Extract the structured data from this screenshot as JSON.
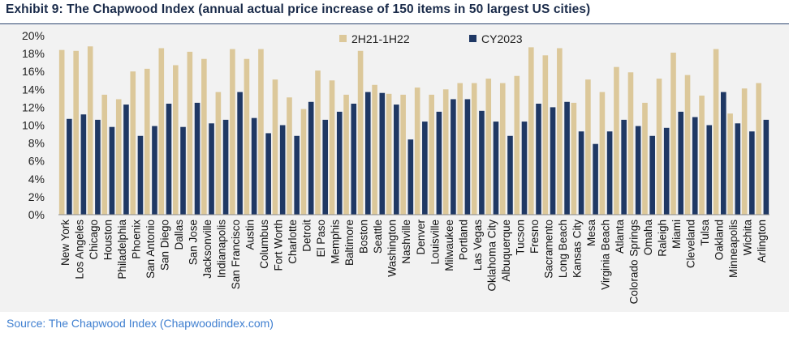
{
  "header": {
    "title": "Exhibit 9: The Chapwood Index (annual actual price increase of 150 items in 50 largest US cities)"
  },
  "footer": {
    "source": "Source: The Chapwood Index (Chapwoodindex.com)"
  },
  "colors": {
    "series_1": "#dcc89a",
    "series_2": "#1f3864",
    "panel_background": "#f2f2f2",
    "title_rule": "#1f3864",
    "source_text": "#3f7fd0"
  },
  "chart_data": {
    "type": "bar",
    "title": "",
    "xlabel": "",
    "ylabel": "",
    "ylim": [
      0,
      20
    ],
    "y_ticks": [
      "0%",
      "2%",
      "4%",
      "6%",
      "8%",
      "10%",
      "12%",
      "14%",
      "16%",
      "18%",
      "20%"
    ],
    "grid": false,
    "legend_position": "top-center",
    "categories": [
      "New York",
      "Los Angeles",
      "Chicago",
      "Houston",
      "Philadelphia",
      "Phoenix",
      "San Antonio",
      "San Diego",
      "Dallas",
      "San Jose",
      "Jacksonville",
      "Indianapolis",
      "San Francisco",
      "Austin",
      "Columbus",
      "Fort Worth",
      "Charlotte",
      "Detroit",
      "El Paso",
      "Memphis",
      "Baltimore",
      "Boston",
      "Seattle",
      "Washington",
      "Nashville",
      "Denver",
      "Louisville",
      "Milwaukee",
      "Portland",
      "Las Vegas",
      "Oklahoma City",
      "Albuquerque",
      "Tucson",
      "Fresno",
      "Sacramento",
      "Long Beach",
      "Kansas City",
      "Mesa",
      "Virginia Beach",
      "Atlanta",
      "Colorado Springs",
      "Omaha",
      "Raleigh",
      "Miami",
      "Cleveland",
      "Tulsa",
      "Oakland",
      "Minneapolis",
      "Wichita",
      "Arlington"
    ],
    "series": [
      {
        "name": "2H21-1H22",
        "values": [
          18.4,
          18.3,
          18.8,
          13.4,
          12.9,
          16.0,
          16.3,
          18.6,
          16.7,
          18.2,
          17.4,
          13.7,
          18.5,
          17.4,
          18.5,
          15.1,
          13.1,
          11.8,
          16.1,
          15.0,
          13.4,
          18.3,
          14.5,
          13.5,
          13.4,
          14.2,
          13.4,
          14.0,
          14.7,
          14.7,
          15.2,
          14.7,
          15.5,
          18.7,
          17.8,
          18.6,
          12.5,
          15.1,
          13.7,
          16.5,
          15.9,
          12.5,
          15.2,
          18.1,
          15.6,
          13.3,
          18.5,
          11.3,
          14.1,
          14.7
        ]
      },
      {
        "name": "CY2023",
        "values": [
          10.7,
          11.2,
          10.6,
          9.8,
          12.3,
          8.8,
          9.9,
          12.4,
          9.8,
          12.5,
          10.2,
          10.6,
          13.7,
          10.8,
          9.1,
          10.0,
          8.8,
          12.6,
          10.6,
          11.5,
          12.4,
          13.7,
          13.6,
          12.3,
          8.4,
          10.4,
          11.5,
          12.9,
          12.9,
          11.6,
          10.4,
          8.8,
          10.4,
          12.4,
          12.0,
          12.6,
          9.3,
          7.9,
          9.3,
          10.6,
          9.9,
          8.8,
          9.7,
          11.5,
          10.9,
          10.0,
          13.7,
          10.2,
          9.3,
          10.6
        ]
      }
    ]
  }
}
